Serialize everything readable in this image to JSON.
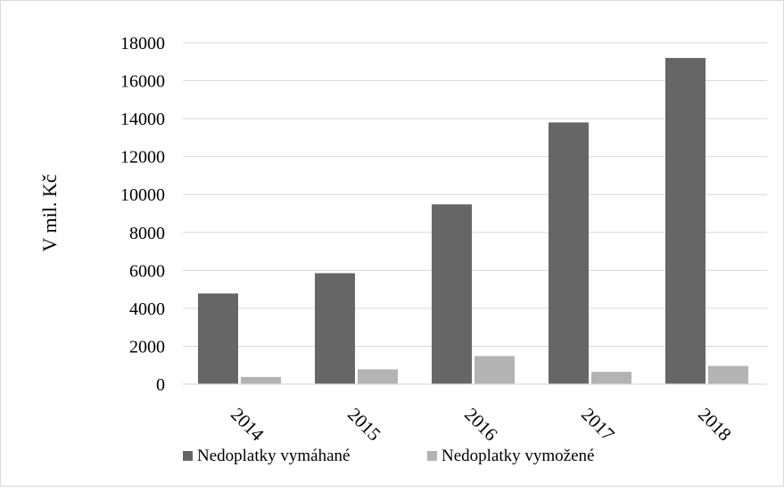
{
  "chart_data": {
    "type": "bar",
    "title": "",
    "xlabel": "",
    "ylabel": "V mil. Kč",
    "categories": [
      "2014",
      "2015",
      "2016",
      "2017",
      "2018"
    ],
    "series": [
      {
        "name": "Nedoplatky vymáhané",
        "color": "#666666",
        "values": [
          4780,
          5850,
          9480,
          13800,
          17200
        ]
      },
      {
        "name": "Nedoplatky vymožené",
        "color": "#b3b3b3",
        "values": [
          380,
          780,
          1480,
          650,
          960
        ]
      }
    ],
    "ylim": [
      0,
      18000
    ],
    "yticks": [
      0,
      2000,
      4000,
      6000,
      8000,
      10000,
      12000,
      14000,
      16000,
      18000
    ],
    "grid": true,
    "legend_position": "bottom"
  }
}
